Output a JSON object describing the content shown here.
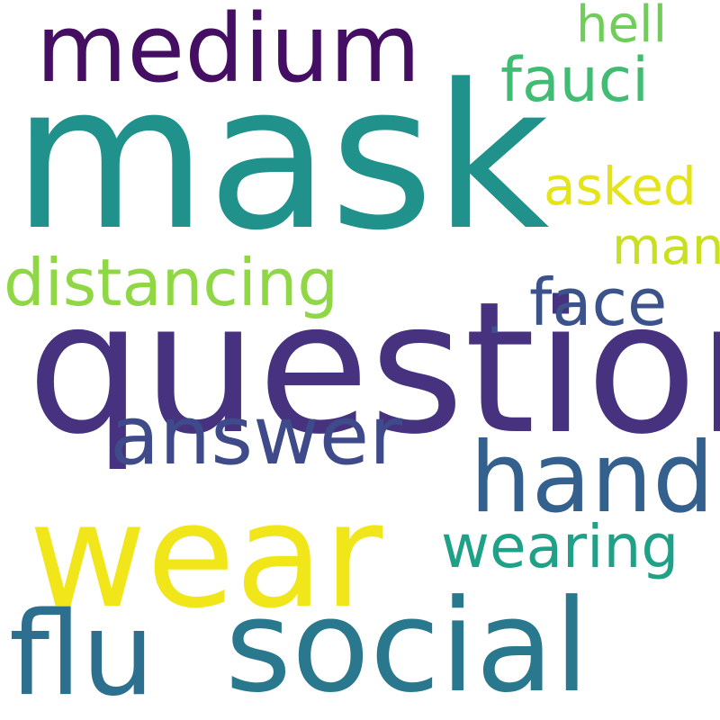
{
  "words": [
    {
      "id": "mask",
      "text": "mask",
      "color": "#21918c"
    },
    {
      "id": "question",
      "text": "question",
      "color": "#46327e"
    },
    {
      "id": "wear",
      "text": "wear",
      "color": "#f0e61a"
    },
    {
      "id": "social",
      "text": "social",
      "color": "#2a788e"
    },
    {
      "id": "flu",
      "text": "flu",
      "color": "#2d6f8e"
    },
    {
      "id": "medium",
      "text": "medium",
      "color": "#440f63"
    },
    {
      "id": "hand",
      "text": "hand",
      "color": "#33608d"
    },
    {
      "id": "answer",
      "text": "answer",
      "color": "#3e4a89"
    },
    {
      "id": "distancing",
      "text": "distancing",
      "color": "#8fd744"
    },
    {
      "id": "face",
      "text": "face",
      "color": "#3b528b"
    },
    {
      "id": "fauci",
      "text": "fauci",
      "color": "#40bd72"
    },
    {
      "id": "wearing",
      "text": "wearing",
      "color": "#1fa187"
    },
    {
      "id": "asked",
      "text": "asked",
      "color": "#e4e419"
    },
    {
      "id": "man",
      "text": "man",
      "color": "#c8e020"
    },
    {
      "id": "hell",
      "text": "hell",
      "color": "#6ece58"
    },
    {
      "id": "dot",
      "text": ".",
      "color": "#3b528b"
    }
  ]
}
